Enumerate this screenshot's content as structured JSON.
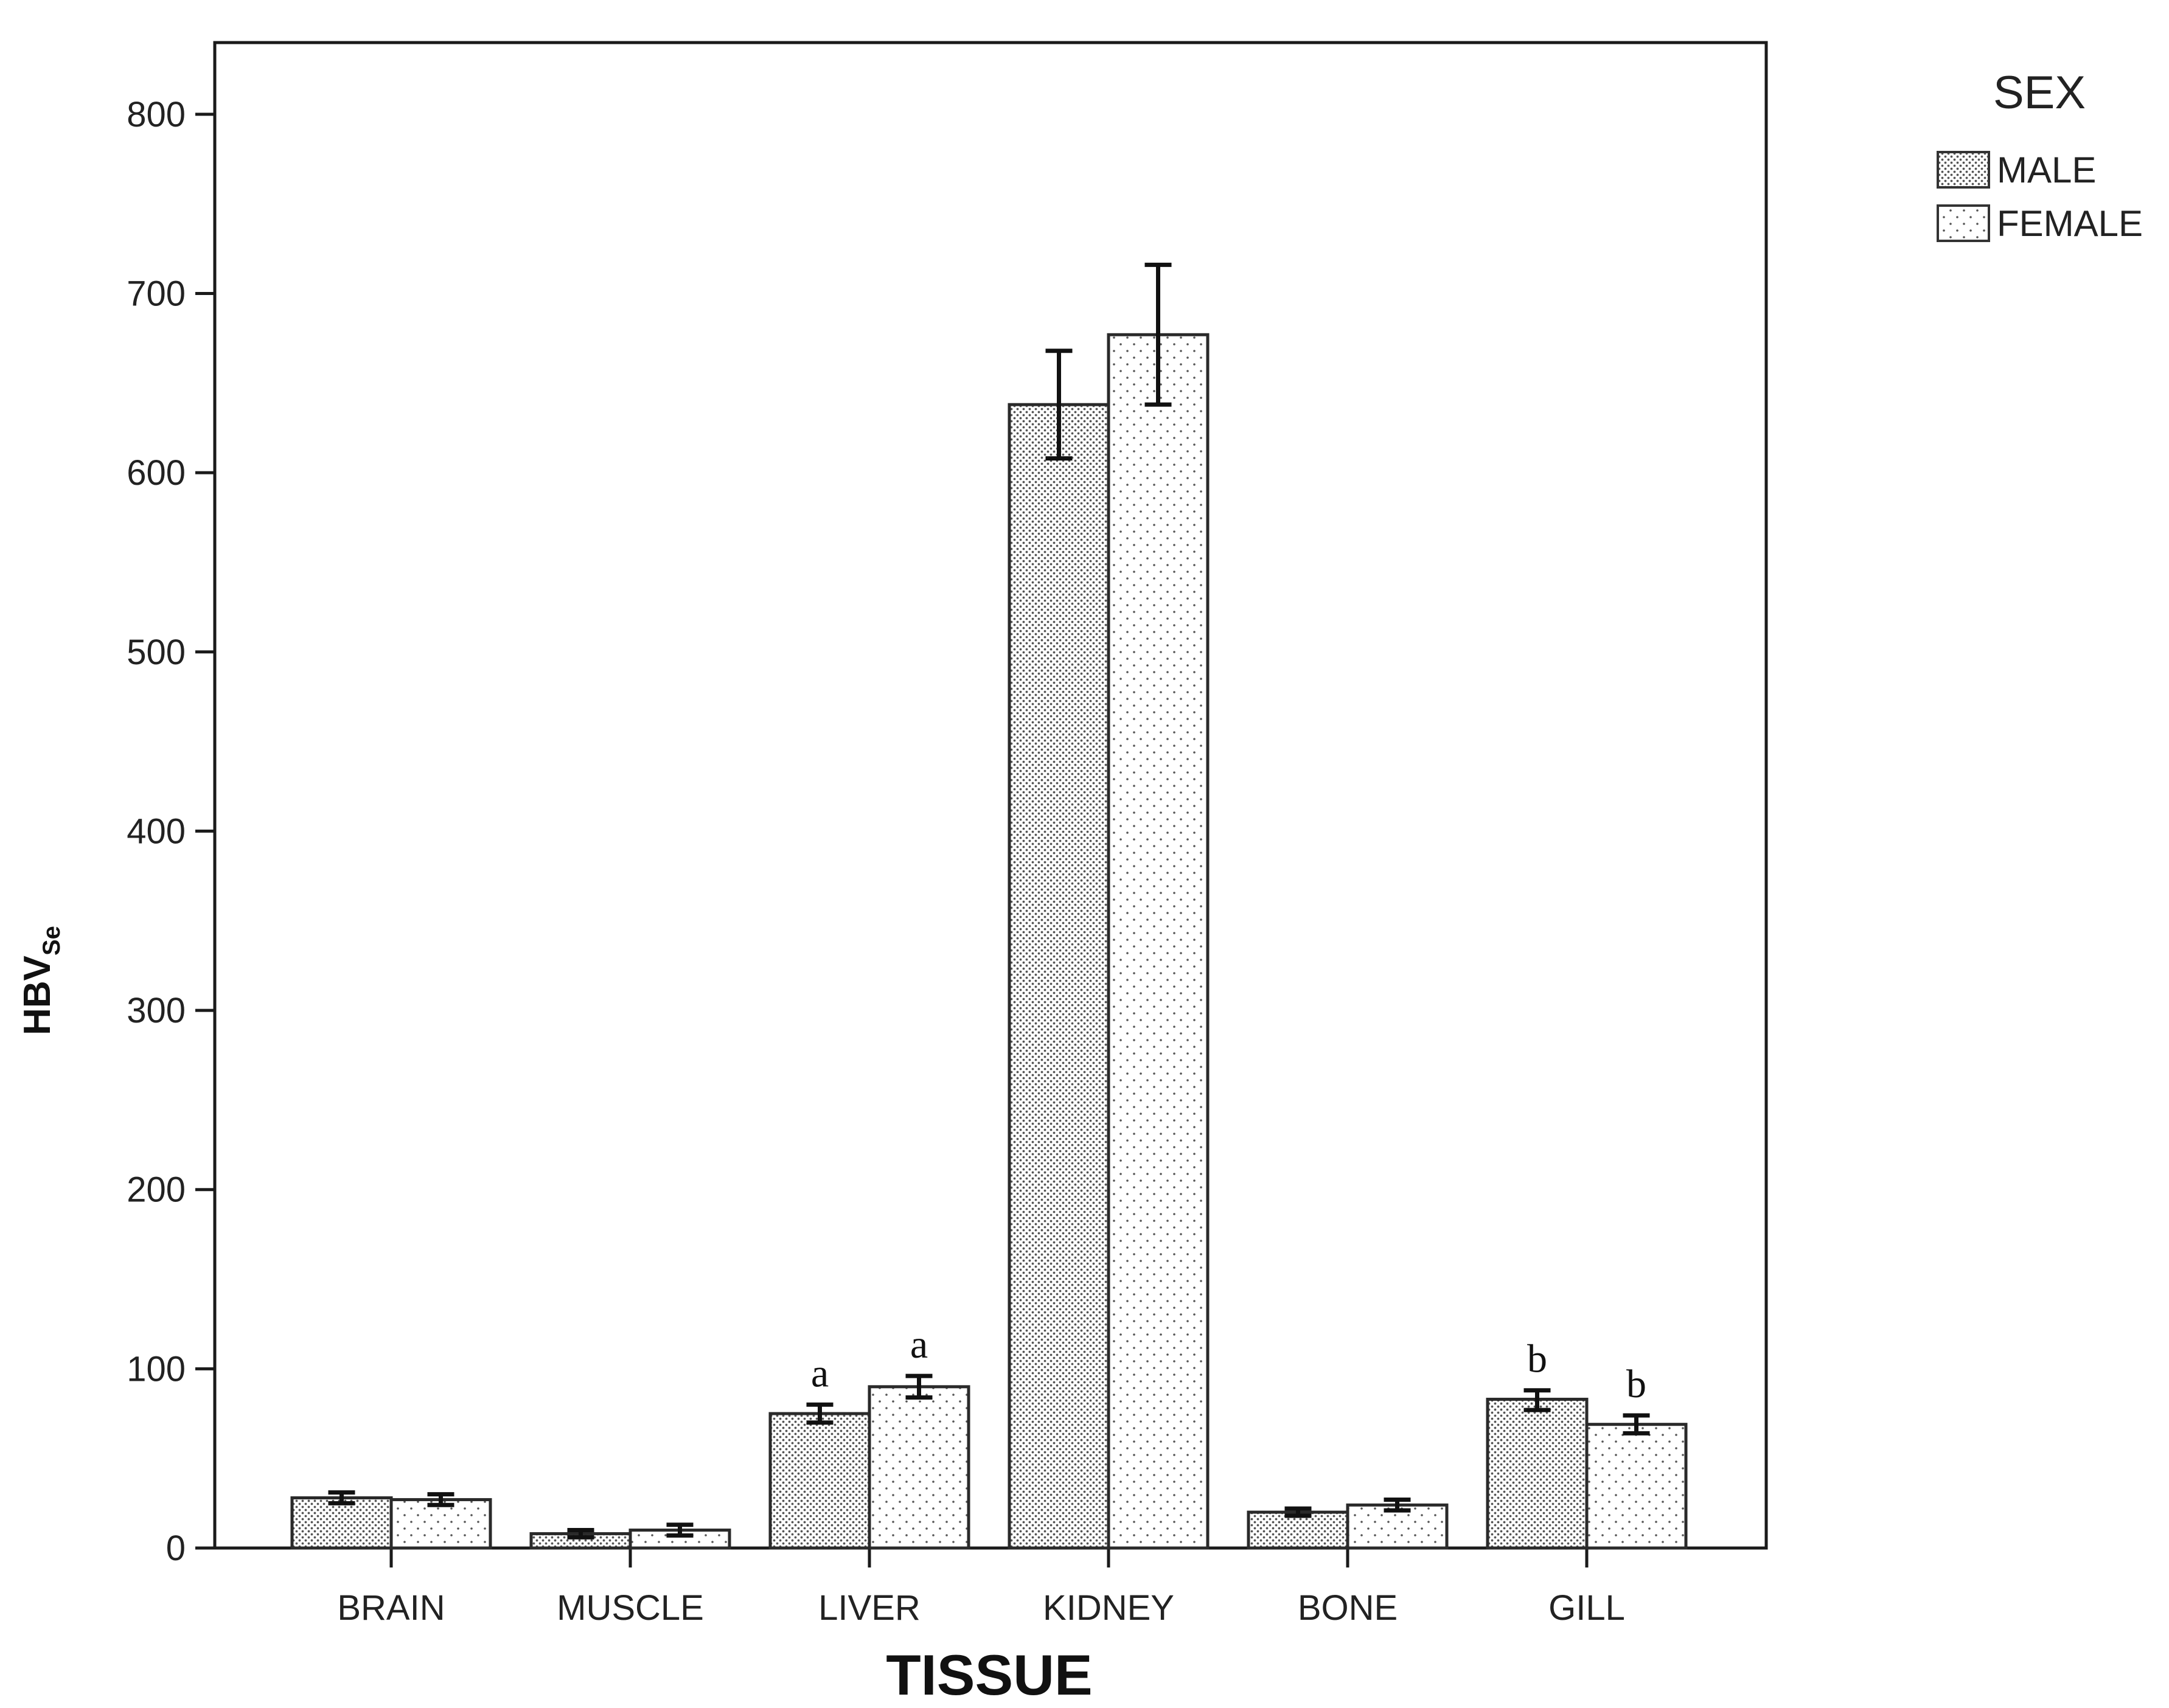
{
  "chart_data": {
    "type": "bar",
    "xlabel": "TISSUE",
    "ylabel": {
      "main": "HBV",
      "subscript": "Se"
    },
    "ylim": [
      0,
      840
    ],
    "yticks": [
      0,
      100,
      200,
      300,
      400,
      500,
      600,
      700,
      800
    ],
    "categories": [
      "BRAIN",
      "MUSCLE",
      "LIVER",
      "KIDNEY",
      "BONE",
      "GILL"
    ],
    "legend": {
      "title": "SEX",
      "position": "top-right, outside plot"
    },
    "grid": false,
    "error_bars": true,
    "series": [
      {
        "name": "MALE",
        "pattern": "dense-dots",
        "values": [
          28,
          8,
          75,
          638,
          20,
          83
        ],
        "error_low": [
          25,
          6,
          70,
          608,
          18,
          77
        ],
        "error_high": [
          31,
          10,
          80,
          668,
          22,
          88
        ],
        "labels": [
          "",
          "",
          "a",
          "",
          "",
          "b"
        ]
      },
      {
        "name": "FEMALE",
        "pattern": "sparse-dots",
        "values": [
          27,
          10,
          90,
          677,
          24,
          69
        ],
        "error_low": [
          24,
          7,
          84,
          638,
          21,
          64
        ],
        "error_high": [
          30,
          13,
          96,
          716,
          27,
          74
        ],
        "labels": [
          "",
          "",
          "a",
          "",
          "",
          "b"
        ]
      }
    ]
  }
}
